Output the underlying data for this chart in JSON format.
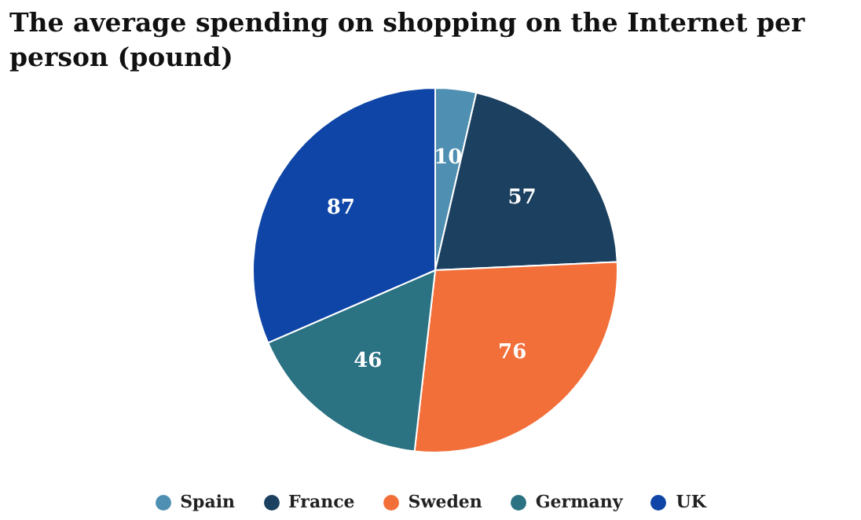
{
  "chart_data": {
    "type": "pie",
    "title": "The average spending on shopping on the Internet per person (pound)",
    "categories": [
      "Spain",
      "France",
      "Sweden",
      "Germany",
      "UK"
    ],
    "values": [
      10,
      57,
      76,
      46,
      87
    ],
    "colors": [
      "#4f8fb1",
      "#1b4060",
      "#f26f3a",
      "#2b7282",
      "#0f45a6"
    ],
    "data_labels": true,
    "legend": "bottom"
  }
}
